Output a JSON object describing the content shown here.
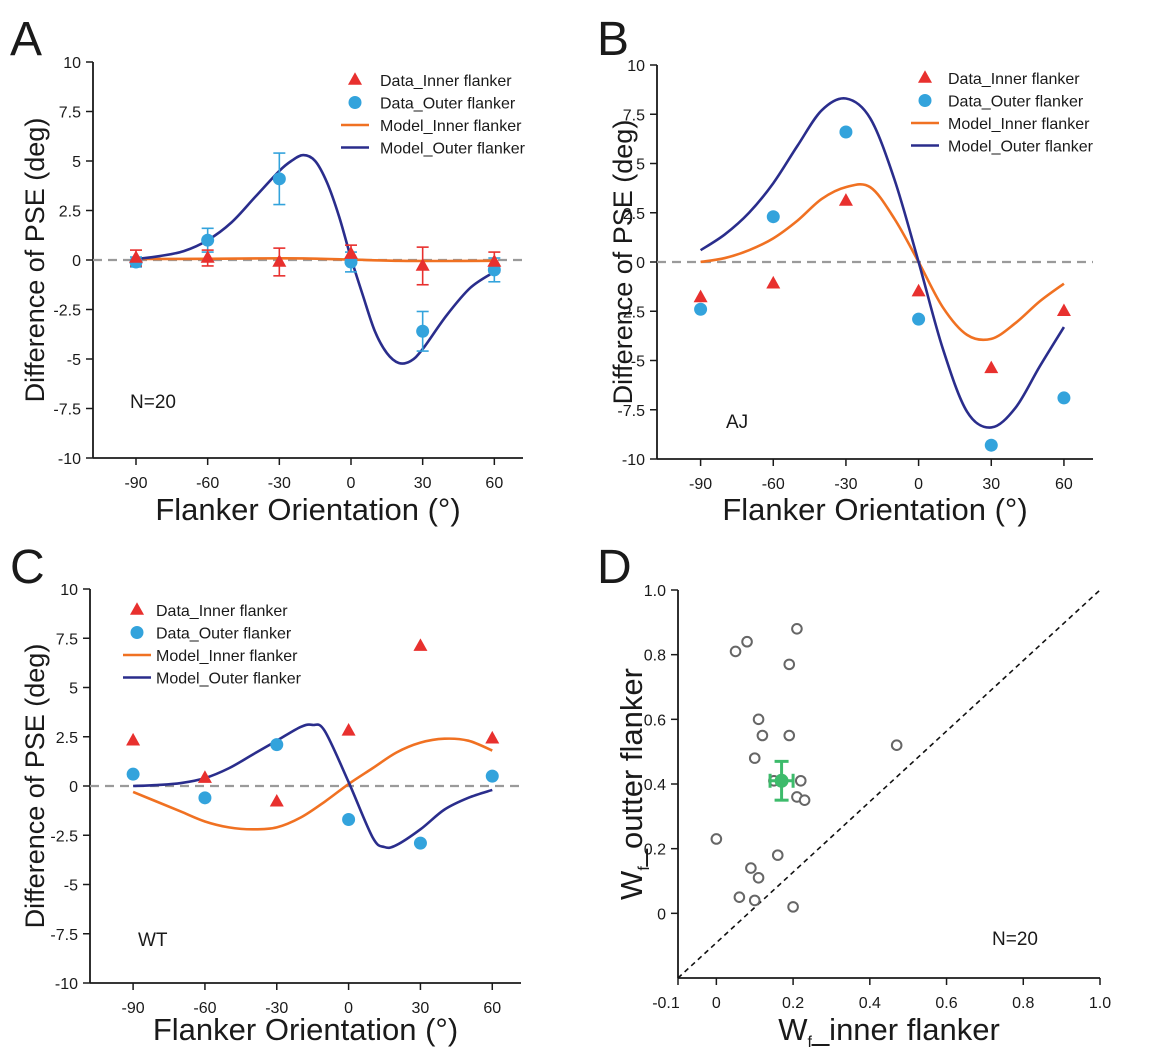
{
  "colors": {
    "inner_data": "#e8302e",
    "outer_data": "#33a3dc",
    "inner_model": "#f07122",
    "outer_model": "#2a2d8c",
    "dashed": "#9a9a9a",
    "axis": "#1a1a1a",
    "mean_point": "#3dbb6b",
    "subject_point": "#666666"
  },
  "chart_data": [
    {
      "panel": "A",
      "type": "line",
      "xlabel": "Flanker Orientation (°)",
      "ylabel": "Difference of PSE (deg)",
      "x_ticks": [
        -90,
        -60,
        -30,
        0,
        30,
        60
      ],
      "y_ticks": [
        10,
        7.5,
        5,
        2.5,
        0,
        -2.5,
        -5,
        -7.5,
        -10
      ],
      "y_tick_labels": [
        "10",
        "7.5",
        "5",
        "2.5",
        "0",
        "-2.5",
        "-5",
        "-7.5",
        "-10"
      ],
      "xlim": [
        -108,
        72
      ],
      "ylim": [
        -10,
        10
      ],
      "annotation": "N=20",
      "legend": [
        "Data_Inner flanker",
        "Data_Outer flanker",
        "Model_Inner flanker",
        "Model_Outer flanker"
      ],
      "legend_position": "top-right",
      "series": [
        {
          "name": "Data_Inner flanker",
          "x": [
            -90,
            -60,
            -30,
            0,
            30,
            60
          ],
          "y": [
            0.1,
            0.1,
            -0.1,
            0.3,
            -0.3,
            -0.1
          ],
          "err": [
            0.4,
            0.4,
            0.7,
            0.45,
            0.95,
            0.5
          ]
        },
        {
          "name": "Data_Outer flanker",
          "x": [
            -90,
            -60,
            -30,
            0,
            30,
            60
          ],
          "y": [
            -0.1,
            1.0,
            4.1,
            -0.1,
            -3.6,
            -0.5
          ],
          "err": [
            0.25,
            0.6,
            1.3,
            0.5,
            1.0,
            0.6
          ]
        },
        {
          "name": "Model_Inner flanker",
          "x": [
            -90,
            -60,
            -40,
            -20,
            0,
            20,
            40,
            60
          ],
          "y": [
            0.05,
            0.06,
            0.08,
            0.08,
            0.02,
            -0.04,
            -0.05,
            -0.04
          ]
        },
        {
          "name": "Model_Outer flanker",
          "x": [
            -90,
            -80,
            -70,
            -60,
            -50,
            -40,
            -30,
            -25,
            -20,
            -15,
            -10,
            -5,
            0,
            5,
            10,
            15,
            20,
            25,
            30,
            40,
            50,
            60
          ],
          "y": [
            0.05,
            0.2,
            0.45,
            1.0,
            1.9,
            3.2,
            4.5,
            5.0,
            5.3,
            5.0,
            3.9,
            2.2,
            0.1,
            -1.8,
            -3.6,
            -4.7,
            -5.2,
            -5.1,
            -4.5,
            -2.8,
            -1.4,
            -0.6
          ]
        }
      ]
    },
    {
      "panel": "B",
      "type": "line",
      "xlabel": "Flanker Orientation (°)",
      "ylabel": "Difference of PSE (deg)",
      "x_ticks": [
        -90,
        -60,
        -30,
        0,
        30,
        60
      ],
      "y_ticks": [
        10,
        7.5,
        5,
        2.5,
        0,
        -2.5,
        -5,
        -7.5,
        -10
      ],
      "y_tick_labels": [
        "10",
        "7.5",
        "5",
        "2.5",
        "0",
        "-2.5",
        "-5",
        "-7.5",
        "-10"
      ],
      "xlim": [
        -108,
        72
      ],
      "ylim": [
        -10,
        10
      ],
      "annotation": "AJ",
      "legend": [
        "Data_Inner flanker",
        "Data_Outer flanker",
        "Model_Inner flanker",
        "Model_Outer flanker"
      ],
      "legend_position": "top-right",
      "series": [
        {
          "name": "Data_Inner flanker",
          "x": [
            -90,
            -60,
            -30,
            0,
            30,
            60
          ],
          "y": [
            -1.8,
            -1.1,
            3.1,
            -1.5,
            -5.4,
            -2.5
          ]
        },
        {
          "name": "Data_Outer flanker",
          "x": [
            -90,
            -60,
            -30,
            0,
            30,
            60
          ],
          "y": [
            -2.4,
            2.3,
            6.6,
            -2.9,
            -9.3,
            -6.9
          ]
        },
        {
          "name": "Model_Inner flanker",
          "x": [
            -90,
            -80,
            -70,
            -60,
            -50,
            -40,
            -30,
            -20,
            -10,
            0,
            10,
            20,
            30,
            40,
            50,
            60
          ],
          "y": [
            0.0,
            0.2,
            0.6,
            1.2,
            2.1,
            3.2,
            3.8,
            3.8,
            2.2,
            0.0,
            -2.3,
            -3.7,
            -3.9,
            -3.1,
            -2.0,
            -1.1
          ]
        },
        {
          "name": "Model_Outer flanker",
          "x": [
            -90,
            -80,
            -70,
            -60,
            -50,
            -40,
            -30,
            -20,
            -10,
            0,
            10,
            20,
            30,
            40,
            50,
            60
          ],
          "y": [
            0.6,
            1.4,
            2.5,
            4.0,
            5.9,
            7.7,
            8.3,
            7.3,
            4.2,
            0.0,
            -4.4,
            -7.6,
            -8.4,
            -7.4,
            -5.3,
            -3.3
          ]
        }
      ]
    },
    {
      "panel": "C",
      "type": "line",
      "xlabel": "Flanker Orientation (°)",
      "ylabel": "Difference of PSE (deg)",
      "x_ticks": [
        -90,
        -60,
        -30,
        0,
        30,
        60
      ],
      "y_ticks": [
        10,
        7.5,
        5,
        2.5,
        0,
        -2.5,
        -5,
        -7.5,
        -10
      ],
      "y_tick_labels": [
        "10",
        "7.5",
        "5",
        "2.5",
        "0",
        "-2.5",
        "-5",
        "-7.5",
        "-10"
      ],
      "xlim": [
        -108,
        72
      ],
      "ylim": [
        -10,
        10
      ],
      "annotation": "WT",
      "legend": [
        "Data_Inner flanker",
        "Data_Outer flanker",
        "Model_Inner flanker",
        "Model_Outer flanker"
      ],
      "legend_position": "top-left",
      "series": [
        {
          "name": "Data_Inner flanker",
          "x": [
            -90,
            -60,
            -30,
            0,
            30,
            60
          ],
          "y": [
            2.3,
            0.4,
            -0.8,
            2.8,
            7.1,
            2.4
          ]
        },
        {
          "name": "Data_Outer flanker",
          "x": [
            -90,
            -60,
            -30,
            0,
            30,
            60
          ],
          "y": [
            0.6,
            -0.6,
            2.1,
            -1.7,
            -2.9,
            0.5
          ]
        },
        {
          "name": "Model_Inner flanker",
          "x": [
            -90,
            -80,
            -70,
            -60,
            -50,
            -40,
            -30,
            -20,
            -10,
            0,
            10,
            20,
            30,
            40,
            50,
            60
          ],
          "y": [
            -0.3,
            -0.8,
            -1.3,
            -1.8,
            -2.1,
            -2.2,
            -2.1,
            -1.6,
            -0.8,
            0.1,
            0.9,
            1.7,
            2.2,
            2.4,
            2.3,
            1.8
          ]
        },
        {
          "name": "Model_Outer flanker",
          "x": [
            -90,
            -80,
            -70,
            -60,
            -50,
            -40,
            -30,
            -20,
            -15,
            -10,
            0,
            10,
            15,
            20,
            30,
            40,
            50,
            60
          ],
          "y": [
            0.0,
            0.05,
            0.15,
            0.4,
            0.9,
            1.6,
            2.3,
            3.0,
            3.1,
            2.8,
            0.2,
            -2.6,
            -3.1,
            -3.0,
            -2.2,
            -1.2,
            -0.6,
            -0.2
          ]
        }
      ]
    },
    {
      "panel": "D",
      "type": "scatter",
      "xlabel_main": "W",
      "xlabel_sub": "f",
      "xlabel_rest": "_inner flanker",
      "ylabel_main": "W",
      "ylabel_sub": "f",
      "ylabel_rest": "_outter flanker",
      "x_ticks": [
        0,
        0.2,
        0.4,
        0.6,
        0.8,
        1.0
      ],
      "x_tick_labels": [
        "0",
        "0.2",
        "0.4",
        "0.6",
        "0.8",
        "1.0"
      ],
      "x_min_label": "-0.1",
      "y_ticks": [
        0,
        0.2,
        0.4,
        0.6,
        0.8,
        1.0
      ],
      "y_tick_labels": [
        "0",
        "0.2",
        "0.4",
        "0.6",
        "0.8",
        "1.0"
      ],
      "xlim": [
        -0.1,
        1.0
      ],
      "ylim": [
        -0.2,
        1.0
      ],
      "annotation": "N=20",
      "identity_line": true,
      "points": [
        {
          "x": 0.05,
          "y": 0.81
        },
        {
          "x": 0.08,
          "y": 0.84
        },
        {
          "x": 0.21,
          "y": 0.88
        },
        {
          "x": 0.19,
          "y": 0.77
        },
        {
          "x": 0.11,
          "y": 0.6
        },
        {
          "x": 0.12,
          "y": 0.55
        },
        {
          "x": 0.19,
          "y": 0.55
        },
        {
          "x": 0.1,
          "y": 0.48
        },
        {
          "x": 0.47,
          "y": 0.52
        },
        {
          "x": 0.15,
          "y": 0.41
        },
        {
          "x": 0.22,
          "y": 0.41
        },
        {
          "x": 0.21,
          "y": 0.36
        },
        {
          "x": 0.23,
          "y": 0.35
        },
        {
          "x": 0.0,
          "y": 0.23
        },
        {
          "x": 0.16,
          "y": 0.18
        },
        {
          "x": 0.09,
          "y": 0.14
        },
        {
          "x": 0.11,
          "y": 0.11
        },
        {
          "x": 0.06,
          "y": 0.05
        },
        {
          "x": 0.1,
          "y": 0.04
        },
        {
          "x": 0.2,
          "y": 0.02
        }
      ],
      "mean": {
        "x": 0.17,
        "y": 0.41,
        "x_err": 0.03,
        "y_err": 0.06
      }
    }
  ],
  "panel_labels": [
    "A",
    "B",
    "C",
    "D"
  ]
}
